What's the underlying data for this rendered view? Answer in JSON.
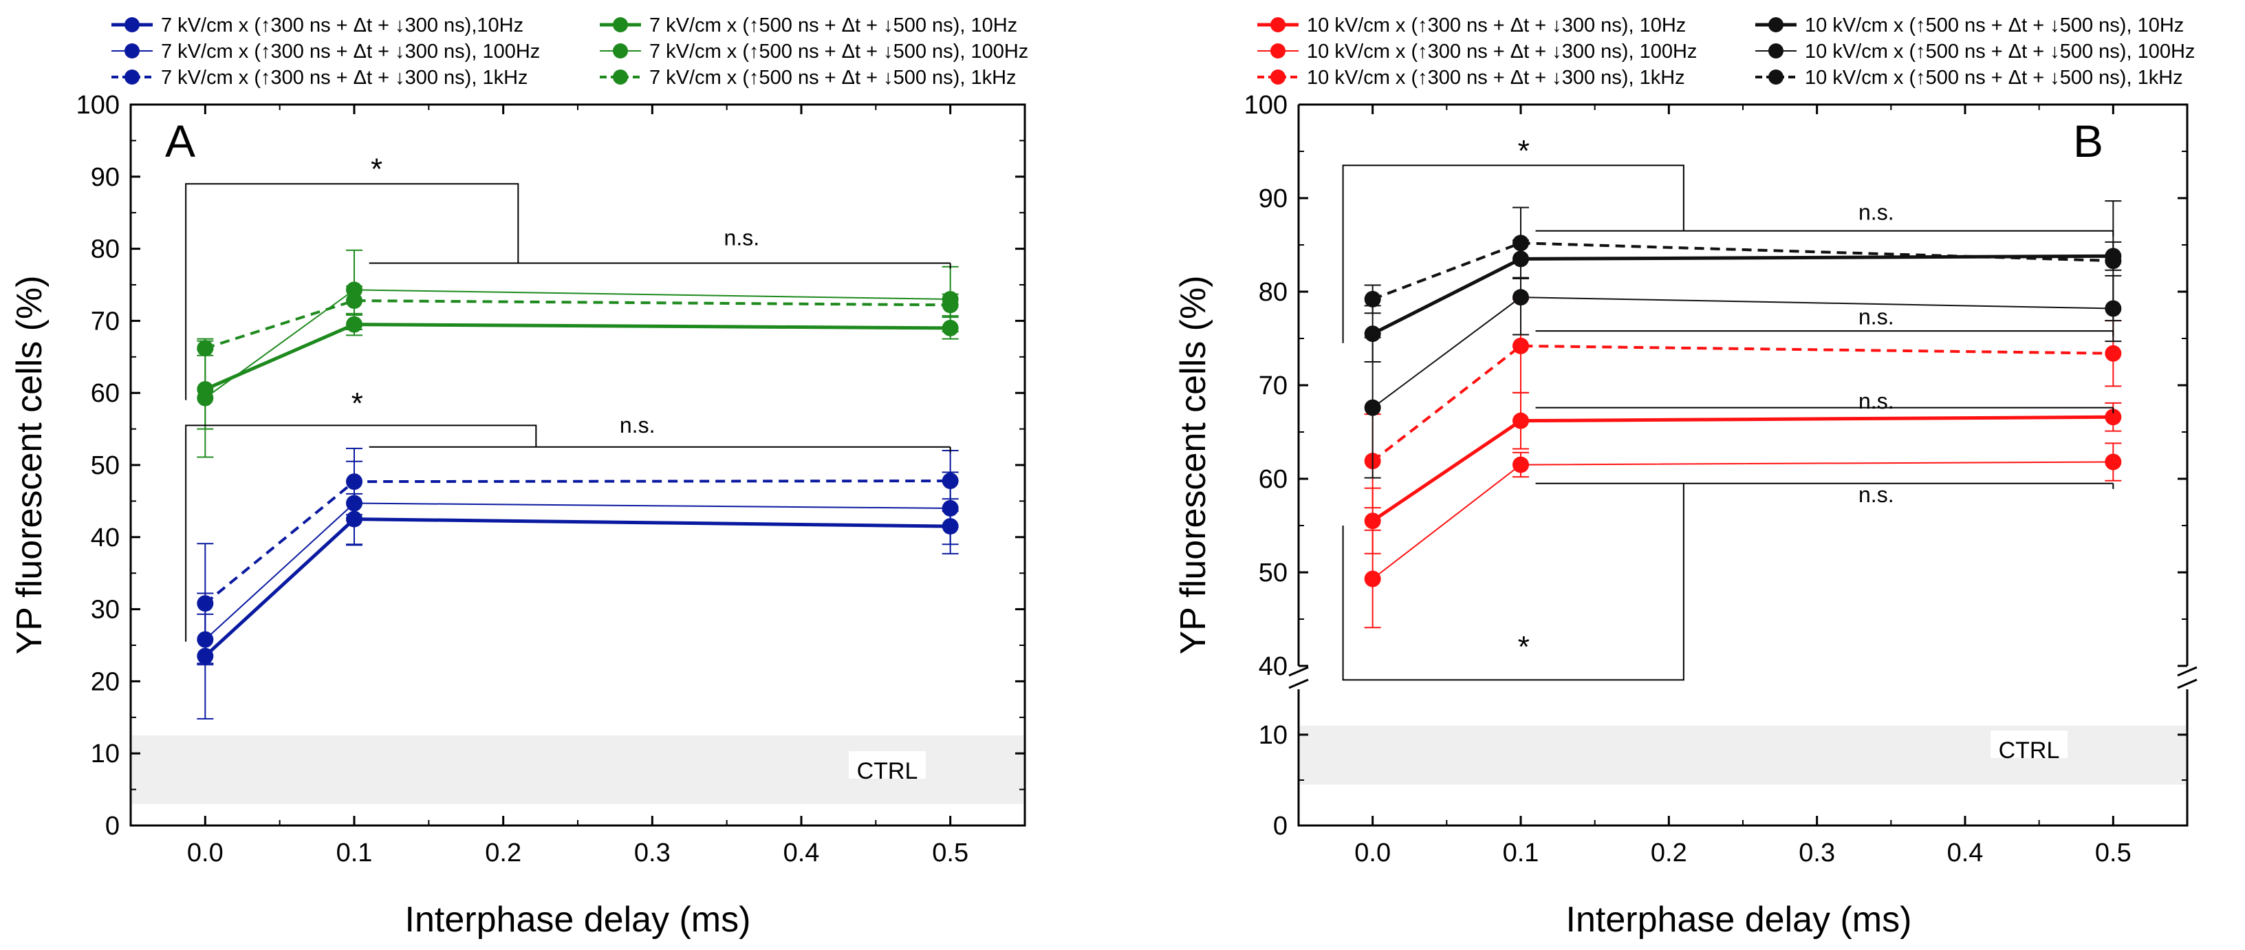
{
  "colors": {
    "blue": "#0a1aa0",
    "green": "#1e8a1e",
    "red": "#ff1111",
    "black": "#111111",
    "ctrl_band": "#efefef"
  },
  "chart_data": [
    {
      "panel": "A",
      "type": "line",
      "xlabel": "Interphase delay (ms)",
      "ylabel": "YP fluorescent cells (%)",
      "xlim": [
        -0.05,
        0.55
      ],
      "ylim": [
        0,
        100
      ],
      "xticks": [
        "0.0",
        "0.1",
        "0.2",
        "0.3",
        "0.4",
        "0.5"
      ],
      "yticks": [
        "0",
        "10",
        "20",
        "30",
        "40",
        "50",
        "60",
        "70",
        "80",
        "90",
        "100"
      ],
      "ctrl": {
        "label": "CTRL",
        "range": [
          3,
          12.5
        ]
      },
      "x": [
        0,
        0.1,
        0.5
      ],
      "series": [
        {
          "name": "7 kV/cm x (↑300 ns + Δt + ↓300 ns),10Hz",
          "color": "#0a1aa0",
          "style": "thick",
          "values": [
            23.5,
            42.5,
            41.5
          ],
          "errors": [
            8.7,
            3.5,
            3.8
          ]
        },
        {
          "name": "7 kV/cm x (↑300 ns + Δt + ↓300 ns), 100Hz",
          "color": "#0a1aa0",
          "style": "thin",
          "values": [
            25.8,
            44.7,
            44.0
          ],
          "errors": [
            3.5,
            5.8,
            5.0
          ]
        },
        {
          "name": "7 kV/cm x (↑300 ns + Δt + ↓300 ns), 1kHz",
          "color": "#0a1aa0",
          "style": "dashed",
          "values": [
            30.8,
            47.7,
            47.8
          ],
          "errors": [
            8.3,
            4.6,
            4.2
          ]
        },
        {
          "name": "7 kV/cm x (↑500 ns + Δt + ↓500 ns), 10Hz",
          "color": "#1e8a1e",
          "style": "thick",
          "values": [
            60.5,
            69.5,
            69.0
          ],
          "errors": [
            5.5,
            1.5,
            1.5
          ]
        },
        {
          "name": "7 kV/cm x (↑500 ns + Δt + ↓500 ns), 100Hz",
          "color": "#1e8a1e",
          "style": "thin",
          "values": [
            59.3,
            74.3,
            73.0
          ],
          "errors": [
            8.2,
            5.5,
            4.5
          ]
        },
        {
          "name": "7 kV/cm x (↑500 ns + Δt + ↓500 ns), 1kHz",
          "color": "#1e8a1e",
          "style": "dashed",
          "values": [
            66.2,
            72.8,
            72.2
          ],
          "errors": [
            1.0,
            2.0,
            1.5
          ]
        }
      ],
      "annotations": [
        {
          "text": "*",
          "x": 0.115,
          "y": 91
        },
        {
          "text": "n.s.",
          "x": 0.36,
          "y": 80.5
        },
        {
          "text": "*",
          "x": 0.102,
          "y": 58.5
        },
        {
          "text": "n.s.",
          "x": 0.29,
          "y": 54.5
        }
      ],
      "brackets": [
        {
          "left": [
            -0.013,
            59
          ],
          "top": 89,
          "split": 0.21,
          "right_drop": 78,
          "span": [
            0.11,
            0.5
          ]
        },
        {
          "left": [
            -0.013,
            25.5
          ],
          "top": 55.5,
          "split": 0.222,
          "right_drop": 52.5,
          "span": [
            0.11,
            0.5
          ]
        }
      ]
    },
    {
      "panel": "B",
      "type": "line",
      "xlabel": "Interphase delay (ms)",
      "ylabel": "YP fluorescent cells (%)",
      "xlim": [
        -0.05,
        0.55
      ],
      "ylim": [
        0,
        100
      ],
      "axis_break": [
        15,
        40
      ],
      "xticks": [
        "0.0",
        "0.1",
        "0.2",
        "0.3",
        "0.4",
        "0.5"
      ],
      "yticks": [
        "0",
        "10",
        "40",
        "50",
        "60",
        "70",
        "80",
        "90",
        "100"
      ],
      "ctrl": {
        "label": "CTRL",
        "range": [
          4.5,
          11
        ]
      },
      "x": [
        0,
        0.1,
        0.5
      ],
      "series": [
        {
          "name": "10 kV/cm x (↑300 ns + Δt + ↓300 ns), 10Hz",
          "color": "#ff1111",
          "style": "thick",
          "values": [
            55.5,
            66.2,
            66.6
          ],
          "errors": [
            3.5,
            3.0,
            1.5
          ]
        },
        {
          "name": "10 kV/cm x (↑300 ns + Δt + ↓300 ns), 100Hz",
          "color": "#ff1111",
          "style": "thin",
          "values": [
            49.3,
            61.5,
            61.8
          ],
          "errors": [
            5.2,
            1.3,
            2.0
          ]
        },
        {
          "name": "10 kV/cm x (↑300 ns + Δt + ↓300 ns), 1kHz",
          "color": "#ff1111",
          "style": "dashed",
          "values": [
            61.9,
            74.2,
            73.4
          ],
          "errors": [
            5.0,
            5.0,
            3.5
          ]
        },
        {
          "name": "10 kV/cm x (↑500 ns + Δt + ↓500 ns), 10Hz",
          "color": "#111111",
          "style": "thick",
          "values": [
            75.5,
            83.5,
            83.8
          ],
          "errors": [
            3.0,
            2.0,
            1.5
          ]
        },
        {
          "name": "10 kV/cm x (↑500 ns + Δt + ↓500 ns), 100Hz",
          "color": "#111111",
          "style": "thin",
          "values": [
            67.6,
            79.4,
            78.2
          ],
          "errors": [
            7.5,
            4.0,
            3.5
          ]
        },
        {
          "name": "10 kV/cm x (↑500 ns + Δt + ↓500 ns), 1kHz",
          "color": "#111111",
          "style": "dashed",
          "values": [
            79.2,
            85.2,
            83.3
          ],
          "errors": [
            1.5,
            3.8,
            6.4
          ]
        }
      ],
      "annotations": [
        {
          "text": "*",
          "x": 0.102,
          "y": 95
        },
        {
          "text": "n.s.",
          "x": 0.34,
          "y": 87.7
        },
        {
          "text": "n.s.",
          "x": 0.34,
          "y": 76.5
        },
        {
          "text": "n.s.",
          "x": 0.34,
          "y": 67.5
        },
        {
          "text": "n.s.",
          "x": 0.34,
          "y": 57.5
        },
        {
          "text": "*",
          "x": 0.102,
          "y": 42
        }
      ],
      "brackets": [
        {
          "left": [
            -0.02,
            74.5
          ],
          "top": 93.5,
          "split": 0.21,
          "right_drop": 86.5,
          "span": [
            0.11,
            0.5
          ]
        },
        {
          "left": [
            -0.02,
            55
          ],
          "top": 38.5,
          "split": 0.21,
          "right_drop": 59.5,
          "span": [
            0.11,
            0.5
          ]
        }
      ],
      "extra_ns_lines": [
        75.8,
        67.6
      ]
    }
  ]
}
